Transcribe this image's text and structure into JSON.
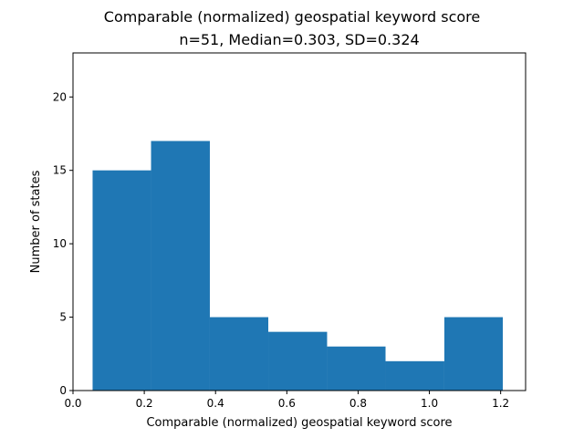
{
  "chart_data": {
    "type": "bar",
    "title": "Comparable (normalized) geospatial keyword score",
    "subtitle": "n=51, Median=0.303, SD=0.324",
    "xlabel": "Comparable (normalized) geospatial keyword score",
    "ylabel": "Number of states",
    "xlim": [
      0.0,
      1.27
    ],
    "ylim": [
      0,
      23
    ],
    "grid": false,
    "legend": "none",
    "bar_color": "#1f77b4",
    "bins": [
      {
        "x0": 0.055,
        "x1": 0.219,
        "count": 15
      },
      {
        "x0": 0.219,
        "x1": 0.384,
        "count": 17
      },
      {
        "x0": 0.384,
        "x1": 0.548,
        "count": 5
      },
      {
        "x0": 0.548,
        "x1": 0.713,
        "count": 4
      },
      {
        "x0": 0.713,
        "x1": 0.877,
        "count": 3
      },
      {
        "x0": 0.877,
        "x1": 1.042,
        "count": 2
      },
      {
        "x0": 1.042,
        "x1": 1.206,
        "count": 5
      }
    ],
    "x_ticks": [
      {
        "value": 0.0,
        "label": "0.0"
      },
      {
        "value": 0.2,
        "label": "0.2"
      },
      {
        "value": 0.4,
        "label": "0.4"
      },
      {
        "value": 0.6,
        "label": "0.6"
      },
      {
        "value": 0.8,
        "label": "0.8"
      },
      {
        "value": 1.0,
        "label": "1.0"
      },
      {
        "value": 1.2,
        "label": "1.2"
      }
    ],
    "y_ticks": [
      {
        "value": 0,
        "label": "0"
      },
      {
        "value": 5,
        "label": "5"
      },
      {
        "value": 10,
        "label": "10"
      },
      {
        "value": 15,
        "label": "15"
      },
      {
        "value": 20,
        "label": "20"
      }
    ]
  }
}
